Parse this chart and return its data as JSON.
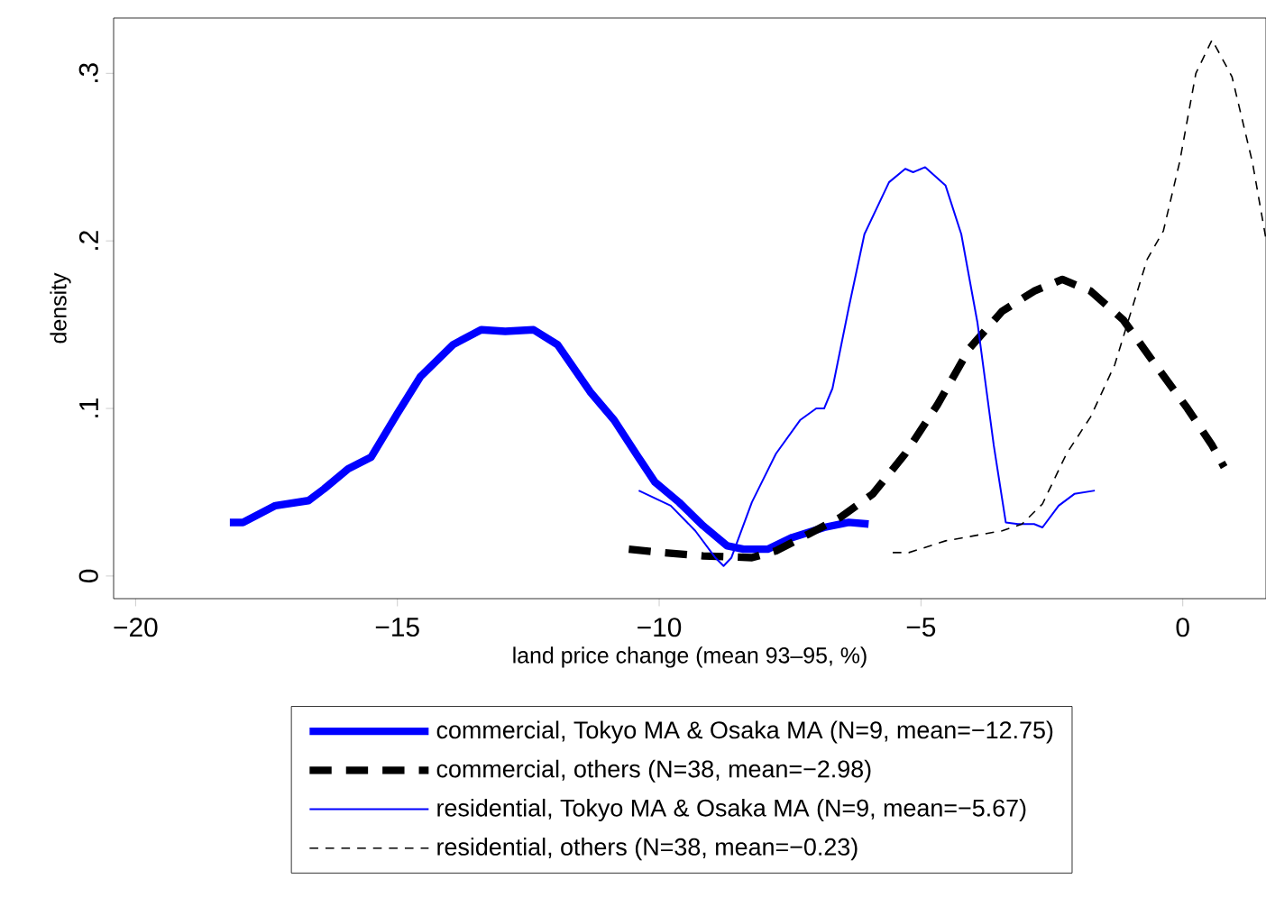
{
  "chart_data": {
    "type": "line",
    "xlabel": "land price change (mean 93–95, %)",
    "ylabel": "density",
    "xlim": [
      -20.42,
      1.59
    ],
    "ylim": [
      -0.0135,
      0.333
    ],
    "xticks": [
      {
        "value": -20,
        "label": "−20"
      },
      {
        "value": -15,
        "label": "−15"
      },
      {
        "value": -10,
        "label": "−10"
      },
      {
        "value": -5,
        "label": "−5"
      },
      0
    ],
    "yticks": [
      0,
      {
        "value": 0.1,
        "label": ".1"
      },
      {
        "value": 0.2,
        "label": ".2"
      },
      {
        "value": 0.3,
        "label": ".3"
      }
    ],
    "grid": false,
    "legend": "bottom",
    "series": [
      {
        "name": "commercial, Tokyo MA & Osaka MA (N=9, mean=−12.75)",
        "color": "#0000ff",
        "line_style": "solid",
        "x": [
          -18.2,
          -17.95,
          -17.33,
          -16.7,
          -16.4,
          -15.94,
          -15.5,
          -15.0,
          -14.56,
          -13.94,
          -13.4,
          -12.94,
          -12.4,
          -11.94,
          -11.32,
          -10.86,
          -10.4,
          -10.08,
          -9.62,
          -9.16,
          -8.7,
          -8.39,
          -7.93,
          -7.46,
          -6.85,
          -6.38,
          -6.0
        ],
        "values": [
          0.032,
          0.032,
          0.042,
          0.045,
          0.052,
          0.064,
          0.071,
          0.097,
          0.119,
          0.138,
          0.147,
          0.146,
          0.147,
          0.138,
          0.11,
          0.093,
          0.071,
          0.056,
          0.044,
          0.03,
          0.018,
          0.016,
          0.016,
          0.023,
          0.029,
          0.032,
          0.031
        ]
      },
      {
        "name": "commercial, others (N=38, mean=−2.98)",
        "color": "#000000",
        "line_style": "dashed",
        "x": [
          -10.58,
          -9.93,
          -9.16,
          -8.23,
          -7.77,
          -7.15,
          -6.54,
          -5.92,
          -5.3,
          -4.69,
          -4.07,
          -3.45,
          -2.84,
          -2.3,
          -1.76,
          -1.14,
          -0.52,
          0.09,
          0.56,
          0.79
        ],
        "values": [
          0.016,
          0.014,
          0.012,
          0.011,
          0.015,
          0.025,
          0.035,
          0.049,
          0.073,
          0.102,
          0.136,
          0.158,
          0.17,
          0.177,
          0.17,
          0.153,
          0.126,
          0.1,
          0.078,
          0.065
        ]
      },
      {
        "name": "residential, Tokyo MA & Osaka MA (N=9, mean=−5.67)",
        "color": "#0000ff",
        "line_style": "solid",
        "x": [
          -10.39,
          -9.78,
          -9.31,
          -8.93,
          -8.77,
          -8.62,
          -8.23,
          -7.77,
          -7.31,
          -7.0,
          -6.85,
          -6.69,
          -6.38,
          -6.08,
          -5.61,
          -5.3,
          -5.15,
          -4.92,
          -4.53,
          -4.23,
          -3.92,
          -3.61,
          -3.38,
          -3.15,
          -2.84,
          -2.68,
          -2.37,
          -2.07,
          -1.68
        ],
        "values": [
          0.051,
          0.042,
          0.027,
          0.011,
          0.006,
          0.011,
          0.044,
          0.073,
          0.093,
          0.1,
          0.1,
          0.112,
          0.16,
          0.204,
          0.235,
          0.243,
          0.241,
          0.244,
          0.233,
          0.204,
          0.151,
          0.078,
          0.032,
          0.031,
          0.031,
          0.029,
          0.042,
          0.049,
          0.051
        ]
      },
      {
        "name": "residential, others (N=38, mean=−0.23)",
        "color": "#000000",
        "line_style": "dashed",
        "x": [
          -5.54,
          -5.23,
          -4.53,
          -3.45,
          -3.07,
          -2.68,
          -2.22,
          -1.76,
          -1.3,
          -0.68,
          -0.37,
          -0.06,
          0.25,
          0.56,
          0.94,
          1.33,
          1.59
        ],
        "values": [
          0.014,
          0.014,
          0.021,
          0.027,
          0.031,
          0.043,
          0.073,
          0.095,
          0.126,
          0.189,
          0.206,
          0.247,
          0.3,
          0.32,
          0.298,
          0.247,
          0.201
        ]
      }
    ]
  }
}
